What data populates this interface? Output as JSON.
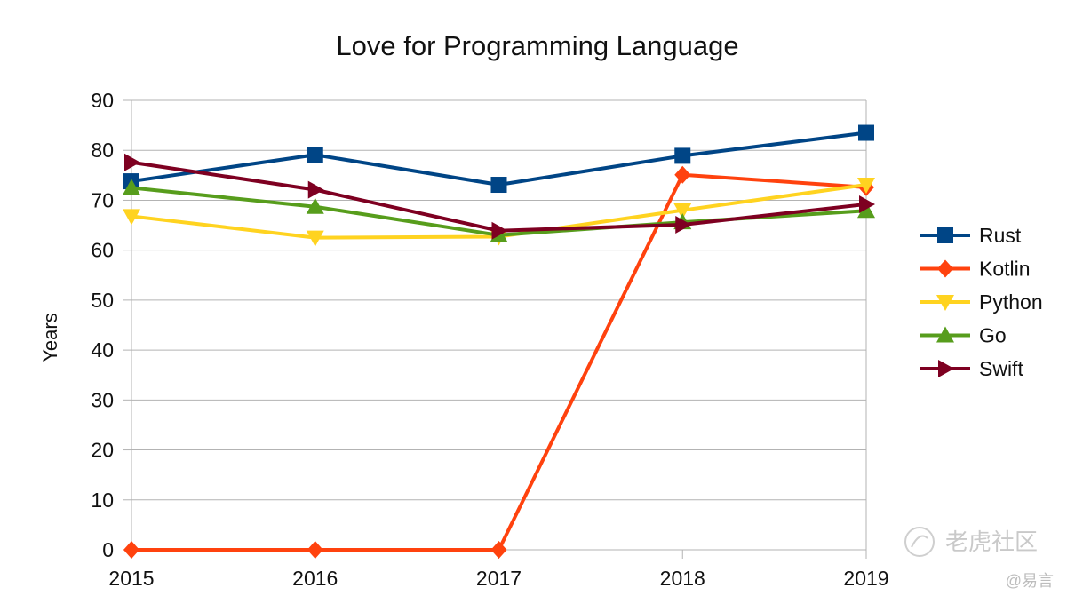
{
  "chart_data": {
    "type": "line",
    "title": "Love for Programming Language",
    "xlabel": "",
    "ylabel": "Years",
    "categories": [
      "2015",
      "2016",
      "2017",
      "2018",
      "2019"
    ],
    "ylim": [
      0,
      90
    ],
    "yticks": [
      0,
      10,
      20,
      30,
      40,
      50,
      60,
      70,
      80,
      90
    ],
    "grid": true,
    "legend_position": "right",
    "series": [
      {
        "name": "Rust",
        "values": [
          73.8,
          79.1,
          73.1,
          78.9,
          83.5
        ],
        "color": "#004586",
        "marker": "square"
      },
      {
        "name": "Kotlin",
        "values": [
          0,
          0,
          0,
          75.1,
          72.6
        ],
        "color": "#ff420e",
        "marker": "diamond"
      },
      {
        "name": "Python",
        "values": [
          66.8,
          62.5,
          62.7,
          68.0,
          73.1
        ],
        "color": "#ffd320",
        "marker": "triangle-down"
      },
      {
        "name": "Go",
        "values": [
          72.5,
          68.7,
          63.0,
          65.6,
          67.9
        ],
        "color": "#579d1c",
        "marker": "triangle-up"
      },
      {
        "name": "Swift",
        "values": [
          77.6,
          72.1,
          63.9,
          65.1,
          69.2
        ],
        "color": "#7e0021",
        "marker": "triangle-right"
      }
    ]
  },
  "watermark": {
    "site": "老虎社区",
    "author": "@易言"
  }
}
